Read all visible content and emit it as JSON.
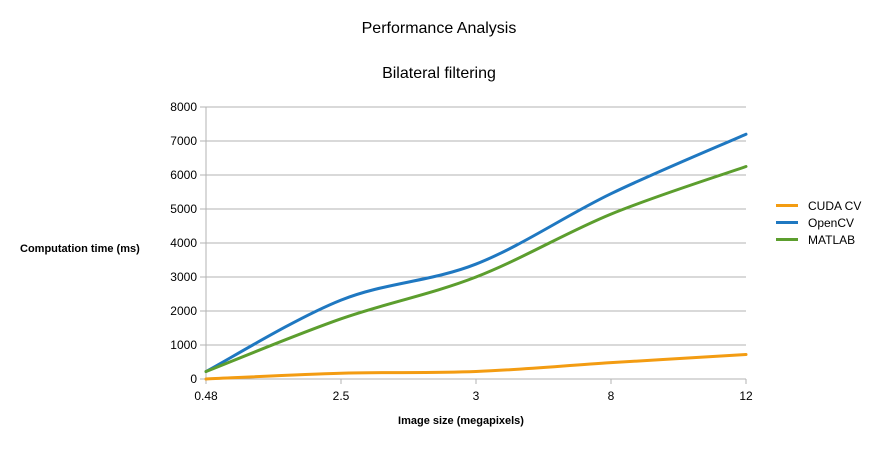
{
  "chart_data": {
    "type": "line",
    "title": "Performance Analysis",
    "subtitle": "Bilateral filtering",
    "xlabel": "Image size (megapixels)",
    "ylabel": "Computation time (ms)",
    "categories": [
      "0.48",
      "2.5",
      "3",
      "8",
      "12"
    ],
    "ylim": [
      0,
      8000
    ],
    "yticks": [
      0,
      1000,
      2000,
      3000,
      4000,
      5000,
      6000,
      7000,
      8000
    ],
    "grid": true,
    "legend_position": "right",
    "series": [
      {
        "name": "CUDA CV",
        "color": "#f39c12",
        "values": [
          0,
          170,
          220,
          480,
          720
        ]
      },
      {
        "name": "OpenCV",
        "color": "#1f78c1",
        "values": [
          220,
          2320,
          3380,
          5450,
          7200
        ]
      },
      {
        "name": "MATLAB",
        "color": "#5c9e2e",
        "values": [
          220,
          1770,
          3000,
          4850,
          6250
        ]
      }
    ]
  }
}
